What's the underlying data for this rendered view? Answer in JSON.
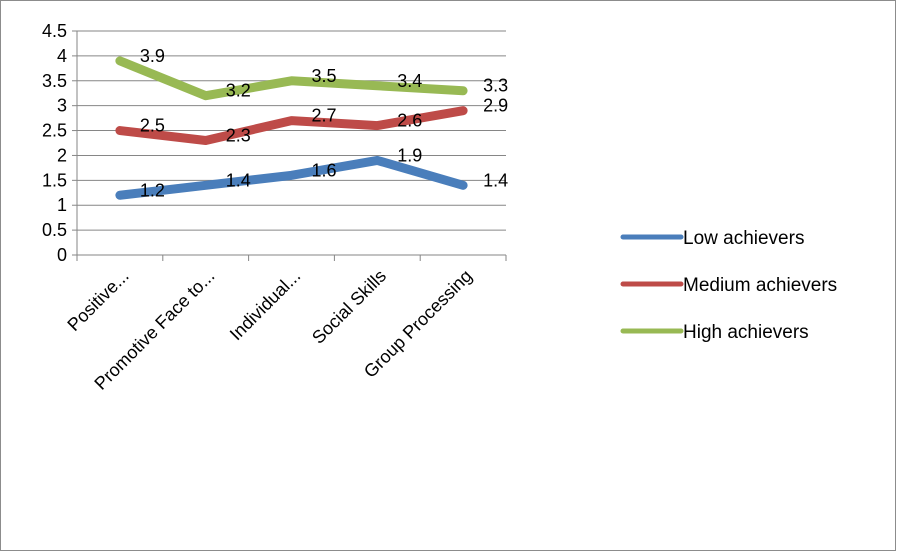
{
  "chart_data": {
    "type": "line",
    "categories": [
      "Positive...",
      "Promotive Face to...",
      "Individual...",
      "Social Skills",
      "Group Processing"
    ],
    "series": [
      {
        "name": "Low achievers",
        "values": [
          1.2,
          1.4,
          1.6,
          1.9,
          1.4
        ],
        "color": "#4a7ebb"
      },
      {
        "name": "Medium achievers",
        "values": [
          2.5,
          2.3,
          2.7,
          2.6,
          2.9
        ],
        "color": "#be4b48"
      },
      {
        "name": "High achievers",
        "values": [
          3.9,
          3.2,
          3.5,
          3.4,
          3.3
        ],
        "color": "#98b954"
      }
    ],
    "y_ticks": [
      "0",
      "0.5",
      "1",
      "1.5",
      "2",
      "2.5",
      "3",
      "3.5",
      "4",
      "4.5"
    ],
    "ylim": [
      0,
      4.5
    ],
    "grid": true,
    "legend_position": "right",
    "data_labels": true
  }
}
